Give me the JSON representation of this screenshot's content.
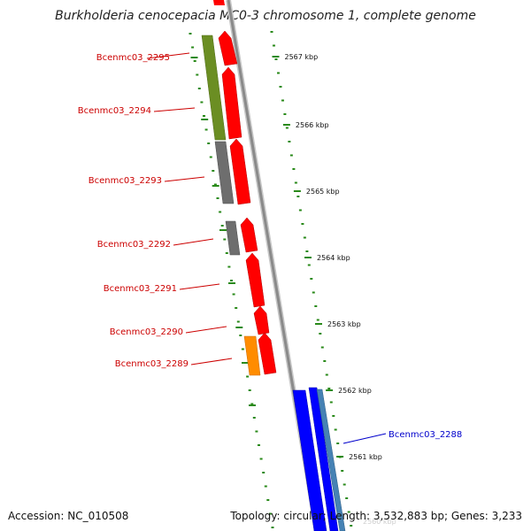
{
  "title": "Burkholderia cenocepacia MC0-3 chromosome 1, complete genome",
  "accession": "Accession: NC_010508",
  "summary": "Topology: circular; Length: 3,532,883 bp; Genes: 3,233",
  "colors": {
    "background": "#ffffff",
    "backbone": "#8a8a8a",
    "cds_forward": "#ff0000",
    "label_red": "#cc0000",
    "label_blue": "#0000cc",
    "tick_green": "#2a8a1a",
    "cog_olive": "#6b8e23",
    "cog_gray": "#6e6e6e",
    "cog_orange": "#ff8c00",
    "cog_blue": "#0000ff",
    "cog_steelblue": "#4682b4"
  },
  "tick_labels": [
    "2567 kbp",
    "2566 kbp",
    "2565 kbp",
    "2564 kbp",
    "2563 kbp",
    "2562 kbp",
    "2561 kbp"
  ],
  "gene_labels": [
    {
      "name": "Bcenmc03_2295",
      "color": "#cc0000"
    },
    {
      "name": "Bcenmc03_2294",
      "color": "#cc0000"
    },
    {
      "name": "Bcenmc03_2293",
      "color": "#cc0000"
    },
    {
      "name": "Bcenmc03_2292",
      "color": "#cc0000"
    },
    {
      "name": "Bcenmc03_2291",
      "color": "#cc0000"
    },
    {
      "name": "Bcenmc03_2290",
      "color": "#cc0000"
    },
    {
      "name": "Bcenmc03_2289",
      "color": "#cc0000"
    },
    {
      "name": "Bcenmc03_2288",
      "color": "#0000cc"
    }
  ]
}
